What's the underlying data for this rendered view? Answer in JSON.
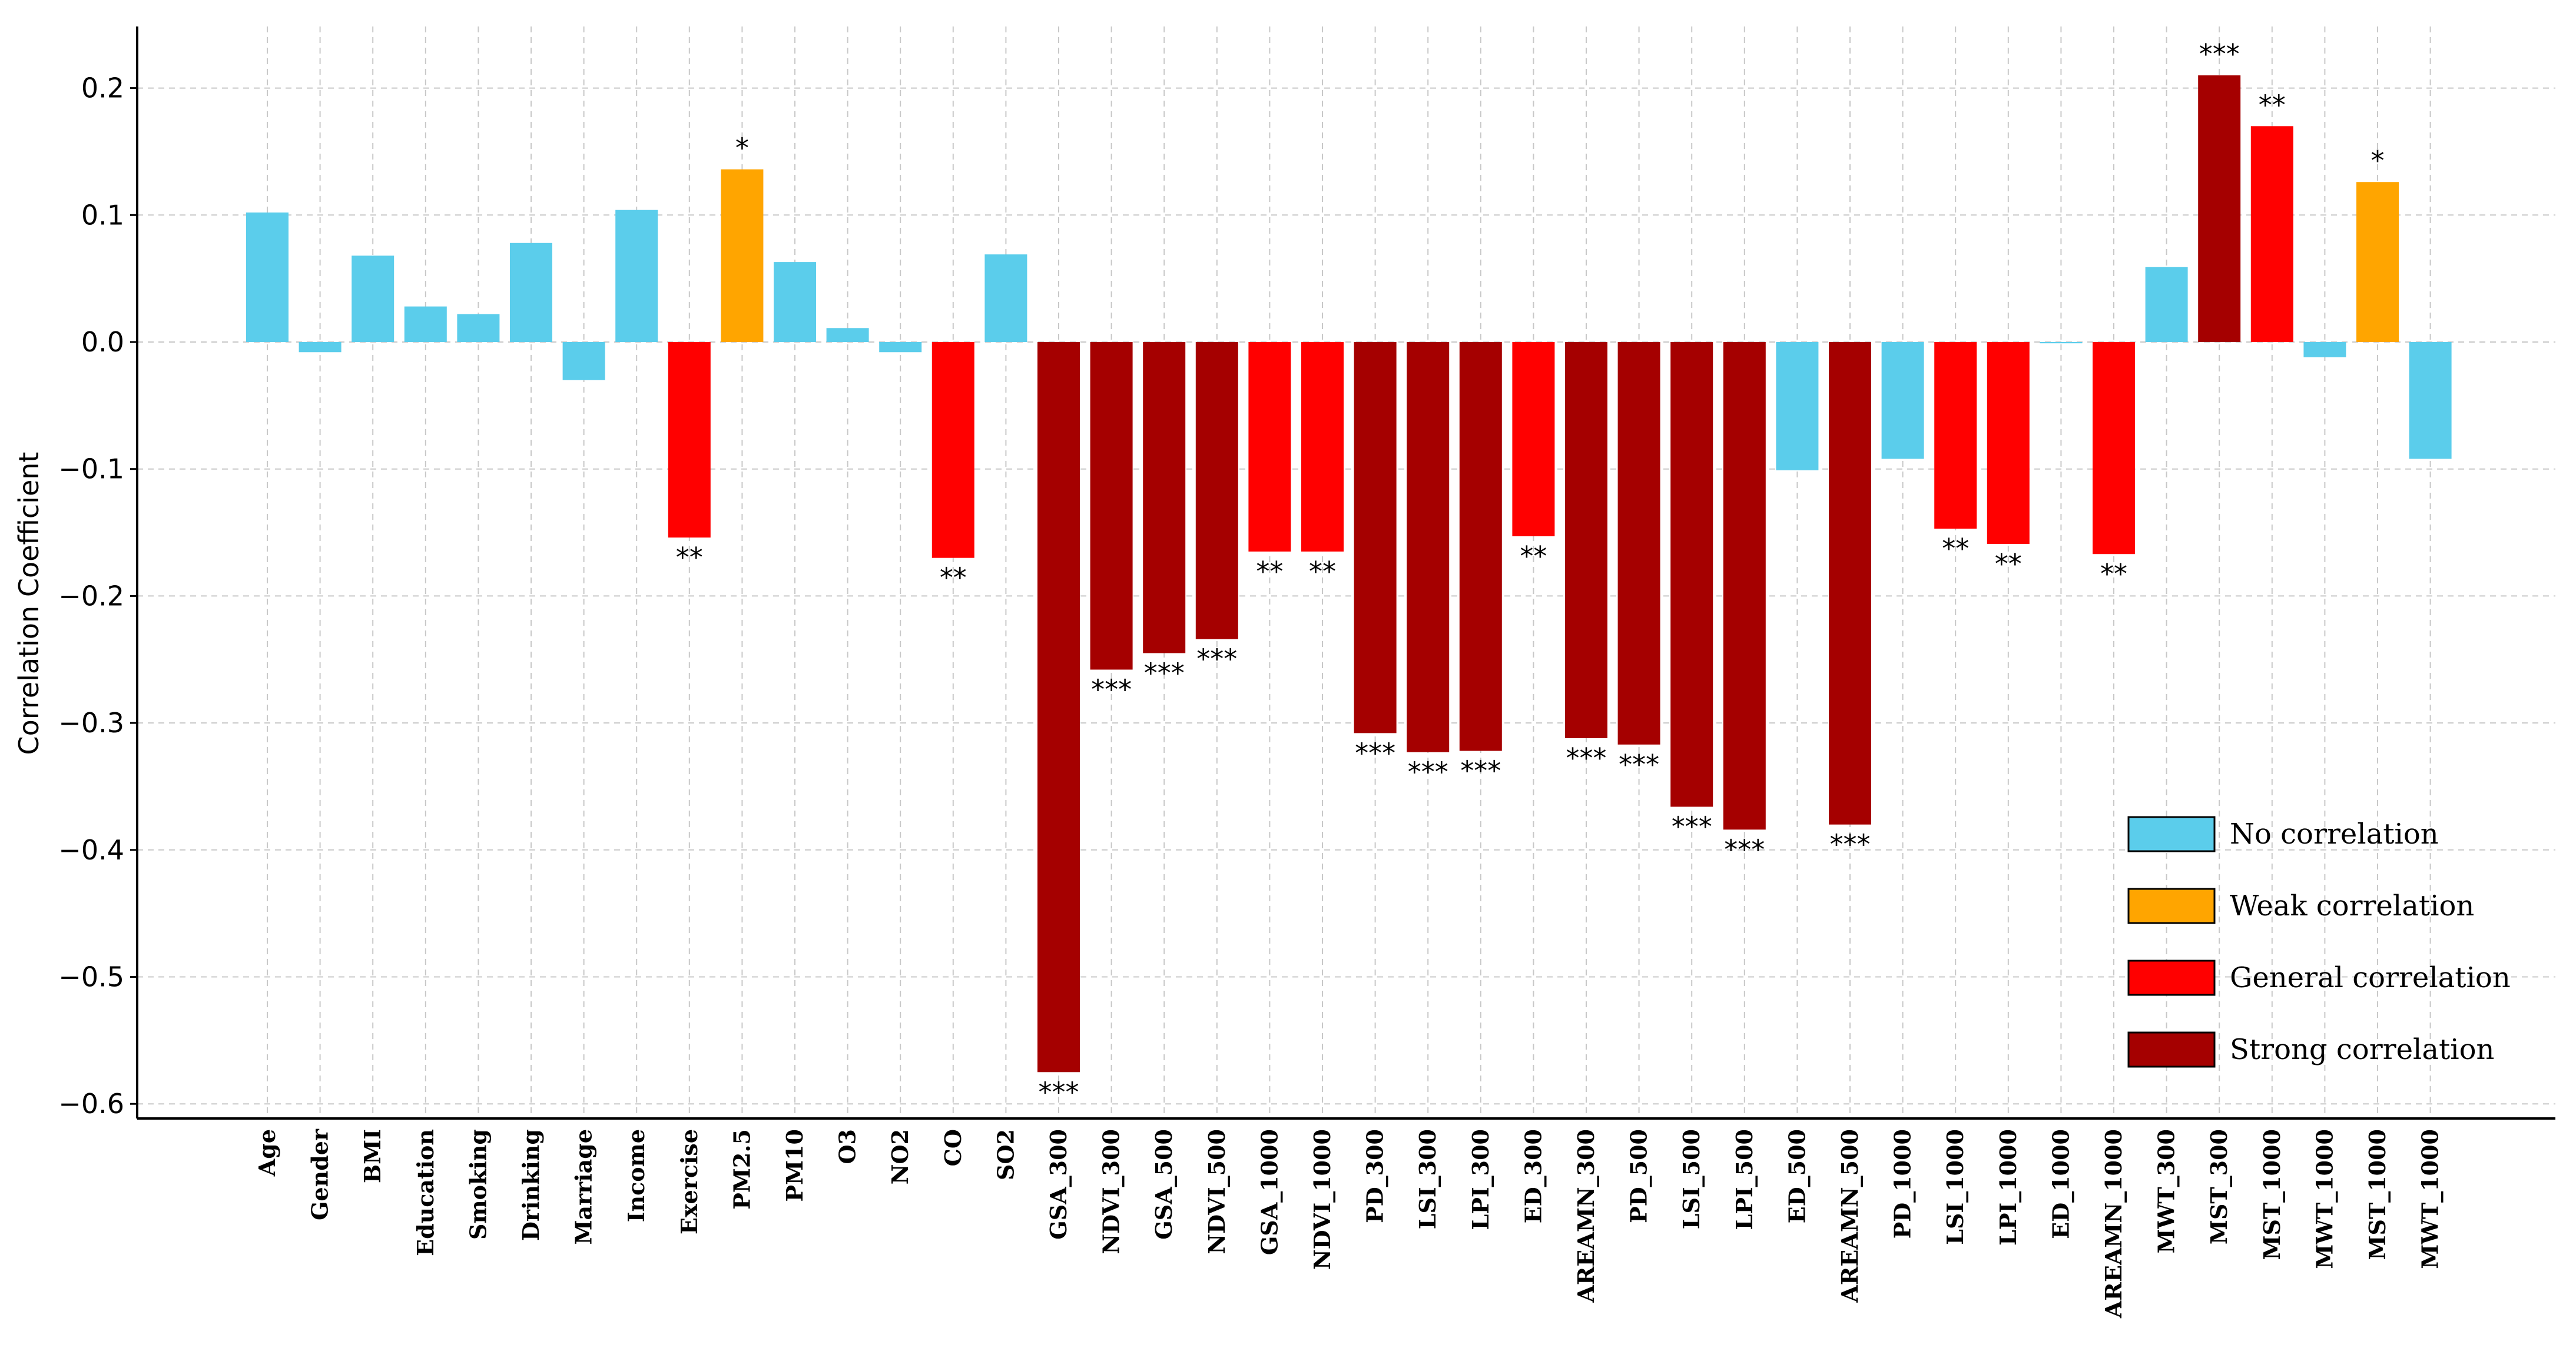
{
  "chart_data": {
    "type": "bar",
    "ylabel": "Correlation Coefficient",
    "xlabel": "",
    "ylim": [
      -0.615,
      0.25
    ],
    "yticks": [
      0.2,
      0.1,
      0.0,
      -0.1,
      -0.2,
      -0.3,
      -0.4,
      -0.5,
      -0.6
    ],
    "ytick_labels": [
      "0.2",
      "0.1",
      "0.0",
      "−0.1",
      "−0.2",
      "−0.3",
      "−0.4",
      "−0.5",
      "−0.6"
    ],
    "grid": true,
    "legend_position": "bottom-right",
    "colors": {
      "none": "#5BCDEB",
      "weak": "#FFA500",
      "general": "#FF0000",
      "strong": "#A50000"
    },
    "legend": [
      {
        "key": "none",
        "label": "No correlation"
      },
      {
        "key": "weak",
        "label": "Weak correlation"
      },
      {
        "key": "general",
        "label": "General correlation"
      },
      {
        "key": "strong",
        "label": "Strong correlation"
      }
    ],
    "bars": [
      {
        "category": "Age",
        "value": 0.102,
        "class": "none",
        "sig": ""
      },
      {
        "category": "Gender",
        "value": -0.008,
        "class": "none",
        "sig": ""
      },
      {
        "category": "BMI",
        "value": 0.068,
        "class": "none",
        "sig": ""
      },
      {
        "category": "Education",
        "value": 0.028,
        "class": "none",
        "sig": ""
      },
      {
        "category": "Smoking",
        "value": 0.022,
        "class": "none",
        "sig": ""
      },
      {
        "category": "Drinking",
        "value": 0.078,
        "class": "none",
        "sig": ""
      },
      {
        "category": "Marriage",
        "value": -0.03,
        "class": "none",
        "sig": ""
      },
      {
        "category": "Income",
        "value": 0.104,
        "class": "none",
        "sig": ""
      },
      {
        "category": "Exercise",
        "value": -0.154,
        "class": "general",
        "sig": "**"
      },
      {
        "category": "PM2.5",
        "value": 0.136,
        "class": "weak",
        "sig": "*"
      },
      {
        "category": "PM10",
        "value": 0.063,
        "class": "none",
        "sig": ""
      },
      {
        "category": "O3",
        "value": 0.011,
        "class": "none",
        "sig": ""
      },
      {
        "category": "NO2",
        "value": -0.008,
        "class": "none",
        "sig": ""
      },
      {
        "category": "CO",
        "value": -0.17,
        "class": "general",
        "sig": "**"
      },
      {
        "category": "SO2",
        "value": 0.069,
        "class": "none",
        "sig": ""
      },
      {
        "category": "GSA_300",
        "value": -0.575,
        "class": "strong",
        "sig": "***"
      },
      {
        "category": "NDVI_300",
        "value": -0.258,
        "class": "strong",
        "sig": "***"
      },
      {
        "category": "GSA_500",
        "value": -0.245,
        "class": "strong",
        "sig": "***"
      },
      {
        "category": "NDVI_500",
        "value": -0.234,
        "class": "strong",
        "sig": "***"
      },
      {
        "category": "GSA_1000",
        "value": -0.165,
        "class": "general",
        "sig": "**"
      },
      {
        "category": "NDVI_1000",
        "value": -0.165,
        "class": "general",
        "sig": "**"
      },
      {
        "category": "PD_300",
        "value": -0.308,
        "class": "strong",
        "sig": "***"
      },
      {
        "category": "LSI_300",
        "value": -0.323,
        "class": "strong",
        "sig": "***"
      },
      {
        "category": "LPI_300",
        "value": -0.322,
        "class": "strong",
        "sig": "***"
      },
      {
        "category": "ED_300",
        "value": -0.153,
        "class": "general",
        "sig": "**"
      },
      {
        "category": "AREAMN_300",
        "value": -0.312,
        "class": "strong",
        "sig": "***"
      },
      {
        "category": "PD_500",
        "value": -0.317,
        "class": "strong",
        "sig": "***"
      },
      {
        "category": "LSI_500",
        "value": -0.366,
        "class": "strong",
        "sig": "***"
      },
      {
        "category": "LPI_500",
        "value": -0.384,
        "class": "strong",
        "sig": "***"
      },
      {
        "category": "ED_500",
        "value": -0.101,
        "class": "none",
        "sig": ""
      },
      {
        "category": "AREAMN_500",
        "value": -0.38,
        "class": "strong",
        "sig": "***"
      },
      {
        "category": "PD_1000",
        "value": -0.092,
        "class": "none",
        "sig": ""
      },
      {
        "category": "LSI_1000",
        "value": -0.147,
        "class": "general",
        "sig": "**"
      },
      {
        "category": "LPI_1000",
        "value": -0.159,
        "class": "general",
        "sig": "**"
      },
      {
        "category": "ED_1000",
        "value": -0.001,
        "class": "none",
        "sig": ""
      },
      {
        "category": "AREAMN_1000",
        "value": -0.167,
        "class": "general",
        "sig": "**"
      },
      {
        "category": "MWT_300",
        "value": 0.059,
        "class": "none",
        "sig": ""
      },
      {
        "category": "MST_300",
        "value": 0.21,
        "class": "strong",
        "sig": "***"
      },
      {
        "category": "MST_1000",
        "value": 0.17,
        "class": "general",
        "sig": "**"
      },
      {
        "category": "MWT_1000",
        "value": -0.012,
        "class": "none",
        "sig": ""
      },
      {
        "category": "MST_1000",
        "value": 0.126,
        "class": "weak",
        "sig": "*"
      },
      {
        "category": "MWT_1000",
        "value": -0.092,
        "class": "none",
        "sig": ""
      }
    ]
  }
}
